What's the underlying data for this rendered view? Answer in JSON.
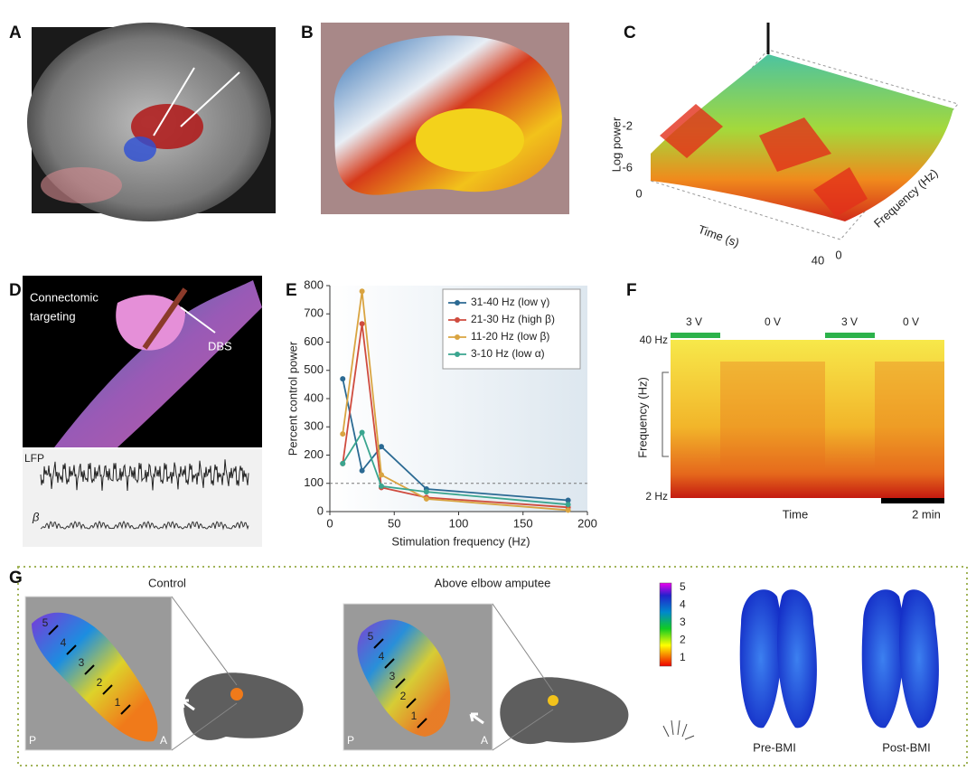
{
  "panels": {
    "A": {
      "letter": "A"
    },
    "B": {
      "letter": "B"
    },
    "C": {
      "letter": "C",
      "y_label": "Log power",
      "z_ticks": [
        "-2",
        "-6"
      ],
      "time_zero": "0",
      "time_label": "Time (s)",
      "freq_label": "Frequency (Hz)",
      "freq_max": "40",
      "freq_zero": "0"
    },
    "D": {
      "letter": "D",
      "text_lines": [
        "Connectomic",
        "targeting"
      ],
      "arrow_label": "DBS",
      "trace_labels": [
        "LFP",
        "β"
      ]
    },
    "E": {
      "letter": "E"
    },
    "F": {
      "letter": "F",
      "voltages": [
        "3 V",
        "0 V",
        "3 V",
        "0 V"
      ],
      "top_label": "40 Hz",
      "bottom_label": "2 Hz",
      "y_label": "Frequency (Hz)",
      "x_label": "Time",
      "scale_label": "2 min"
    },
    "G": {
      "letter": "G",
      "left_title": "Control",
      "right_title": "Above elbow amputee",
      "corner_labels": [
        "P",
        "A",
        "P",
        "A"
      ],
      "finger_labels": [
        "5",
        "4",
        "3",
        "2",
        "1"
      ],
      "colorbar_ticks": [
        "1",
        "2",
        "3",
        "4",
        "5"
      ],
      "bmi_labels": [
        "Pre-BMI",
        "Post-BMI"
      ]
    }
  },
  "chart_data": {
    "type": "line",
    "x_label": "Stimulation frequency (Hz)",
    "y_label": "Percent control power",
    "x": [
      10,
      25,
      40,
      75,
      185
    ],
    "series": [
      {
        "name": "31-40 Hz (low γ)",
        "color": "#2b6a93",
        "values": [
          470,
          145,
          230,
          80,
          40
        ]
      },
      {
        "name": "21-30 Hz (high β)",
        "color": "#cf4b3e",
        "values": [
          170,
          665,
          85,
          50,
          15
        ]
      },
      {
        "name": "11-20 Hz (low β)",
        "color": "#d9a441",
        "values": [
          275,
          780,
          130,
          45,
          5
        ]
      },
      {
        "name": "3-10 Hz (low α)",
        "color": "#3aa58f",
        "values": [
          170,
          280,
          90,
          70,
          25
        ]
      }
    ],
    "xlim": [
      0,
      200
    ],
    "xticks": [
      0,
      50,
      100,
      150,
      200
    ],
    "ylim": [
      0,
      800
    ],
    "yticks": [
      0,
      100,
      200,
      300,
      400,
      500,
      600,
      700,
      800
    ],
    "reference_line": 100,
    "legend": "upper right"
  }
}
